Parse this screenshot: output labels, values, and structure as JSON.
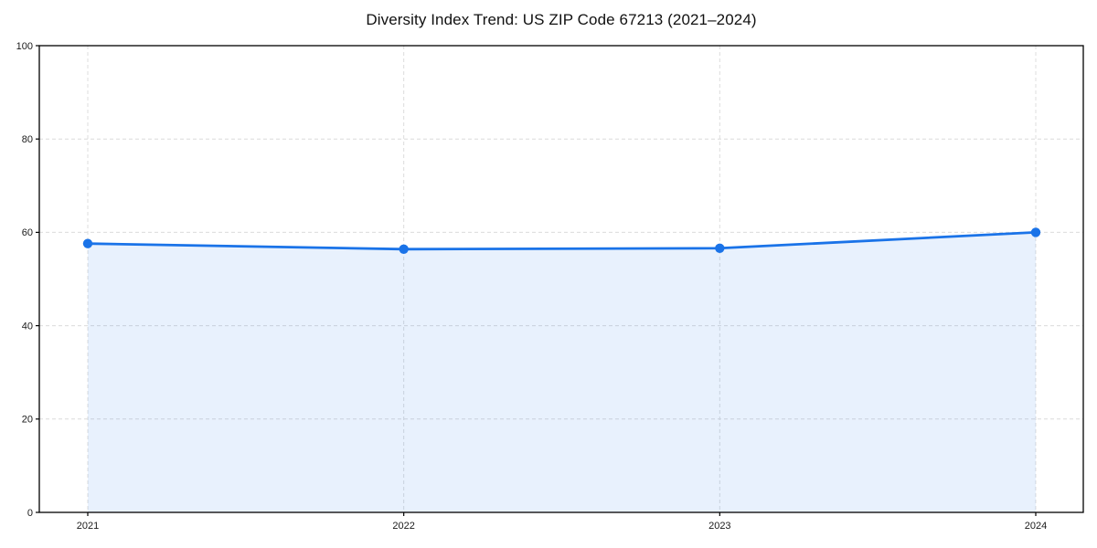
{
  "page": {
    "background": "#ffffff"
  },
  "chart_data": {
    "type": "area",
    "title": "Diversity Index Trend: US ZIP Code 67213 (2021–2024)",
    "categories": [
      "2021",
      "2022",
      "2023",
      "2024"
    ],
    "series": [
      {
        "name": "Diversity Index",
        "values": [
          57.6,
          56.4,
          56.6,
          60.0
        ]
      }
    ],
    "xlabel": "",
    "ylabel": "",
    "ylim": [
      0,
      100
    ],
    "yticks": [
      0,
      20,
      40,
      60,
      80,
      100
    ],
    "grid": {
      "visible": true,
      "style": "dashed",
      "color": "#dcdcdc"
    },
    "legend": {
      "visible": false
    },
    "colors": {
      "line": "#1a73e8",
      "fill": "#1a73e8",
      "fill_opacity": 0.1,
      "marker": "#1a73e8",
      "axis": "#000000",
      "tick_label": "#1a1a1a",
      "title": "#111111"
    }
  }
}
